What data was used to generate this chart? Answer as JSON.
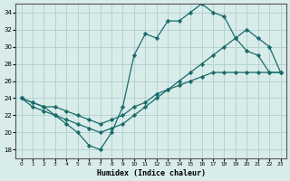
{
  "xlabel": "Humidex (Indice chaleur)",
  "ylabel": "",
  "bg_color": "#d8ecea",
  "grid_color": "#b0cfcc",
  "line_color": "#1a6b6b",
  "xlim": [
    -0.5,
    23.5
  ],
  "ylim": [
    17,
    35
  ],
  "xticks": [
    0,
    1,
    2,
    3,
    4,
    5,
    6,
    7,
    8,
    9,
    10,
    11,
    12,
    13,
    14,
    15,
    16,
    17,
    18,
    19,
    20,
    21,
    22,
    23
  ],
  "yticks": [
    18,
    20,
    22,
    24,
    26,
    28,
    30,
    32,
    34
  ],
  "line1_x": [
    0,
    1,
    2,
    3,
    4,
    5,
    6,
    7,
    8,
    9,
    10,
    11,
    12,
    13,
    14,
    15,
    16,
    17,
    18,
    19,
    20,
    21,
    22,
    23
  ],
  "line1_y": [
    24,
    23,
    22.5,
    22,
    21,
    20,
    18.5,
    18,
    20,
    23,
    29,
    31.5,
    31,
    33,
    33,
    34,
    35,
    34,
    33.5,
    31,
    29.5,
    29,
    27,
    27
  ],
  "line2_x": [
    0,
    1,
    2,
    3,
    4,
    5,
    6,
    7,
    8,
    9,
    10,
    11,
    12,
    13,
    14,
    15,
    16,
    17,
    18,
    19,
    20,
    21,
    22,
    23
  ],
  "line2_y": [
    24,
    23.5,
    23,
    22,
    21.5,
    21,
    20.5,
    20,
    20.5,
    21,
    22,
    23,
    24,
    25,
    26,
    27,
    28,
    29,
    30,
    31,
    32,
    31,
    30,
    27
  ],
  "line3_x": [
    0,
    1,
    2,
    3,
    4,
    5,
    6,
    7,
    8,
    9,
    10,
    11,
    12,
    13,
    14,
    15,
    16,
    17,
    18,
    19,
    20,
    21,
    22,
    23
  ],
  "line3_y": [
    24,
    23.5,
    23,
    23,
    22.5,
    22,
    21.5,
    21,
    21.5,
    22,
    23,
    23.5,
    24.5,
    25,
    25.5,
    26,
    26.5,
    27,
    27,
    27,
    27,
    27,
    27,
    27
  ]
}
